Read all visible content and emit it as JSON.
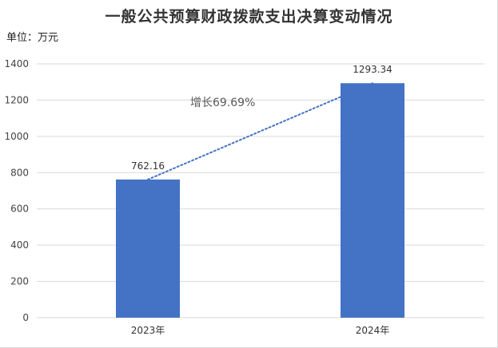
{
  "chart_data": {
    "type": "bar",
    "title": "一般公共预算财政拨款支出决算变动情况",
    "unit": "单位：万元",
    "categories": [
      "2023年",
      "2024年"
    ],
    "values": [
      762.16,
      1293.34
    ],
    "value_labels": [
      "762.16",
      "1293.34"
    ],
    "ylim": [
      0,
      1400
    ],
    "yticks": [
      0,
      200,
      400,
      600,
      800,
      1000,
      1200,
      1400
    ],
    "grid": true,
    "annotation": "增长69.69%",
    "trendline": {
      "style": "dotted",
      "from_category": "2023年",
      "to_category": "2024年"
    },
    "colors": {
      "bar": "#4472C4",
      "trend": "#4472C4",
      "grid": "#d9d9d9"
    }
  }
}
